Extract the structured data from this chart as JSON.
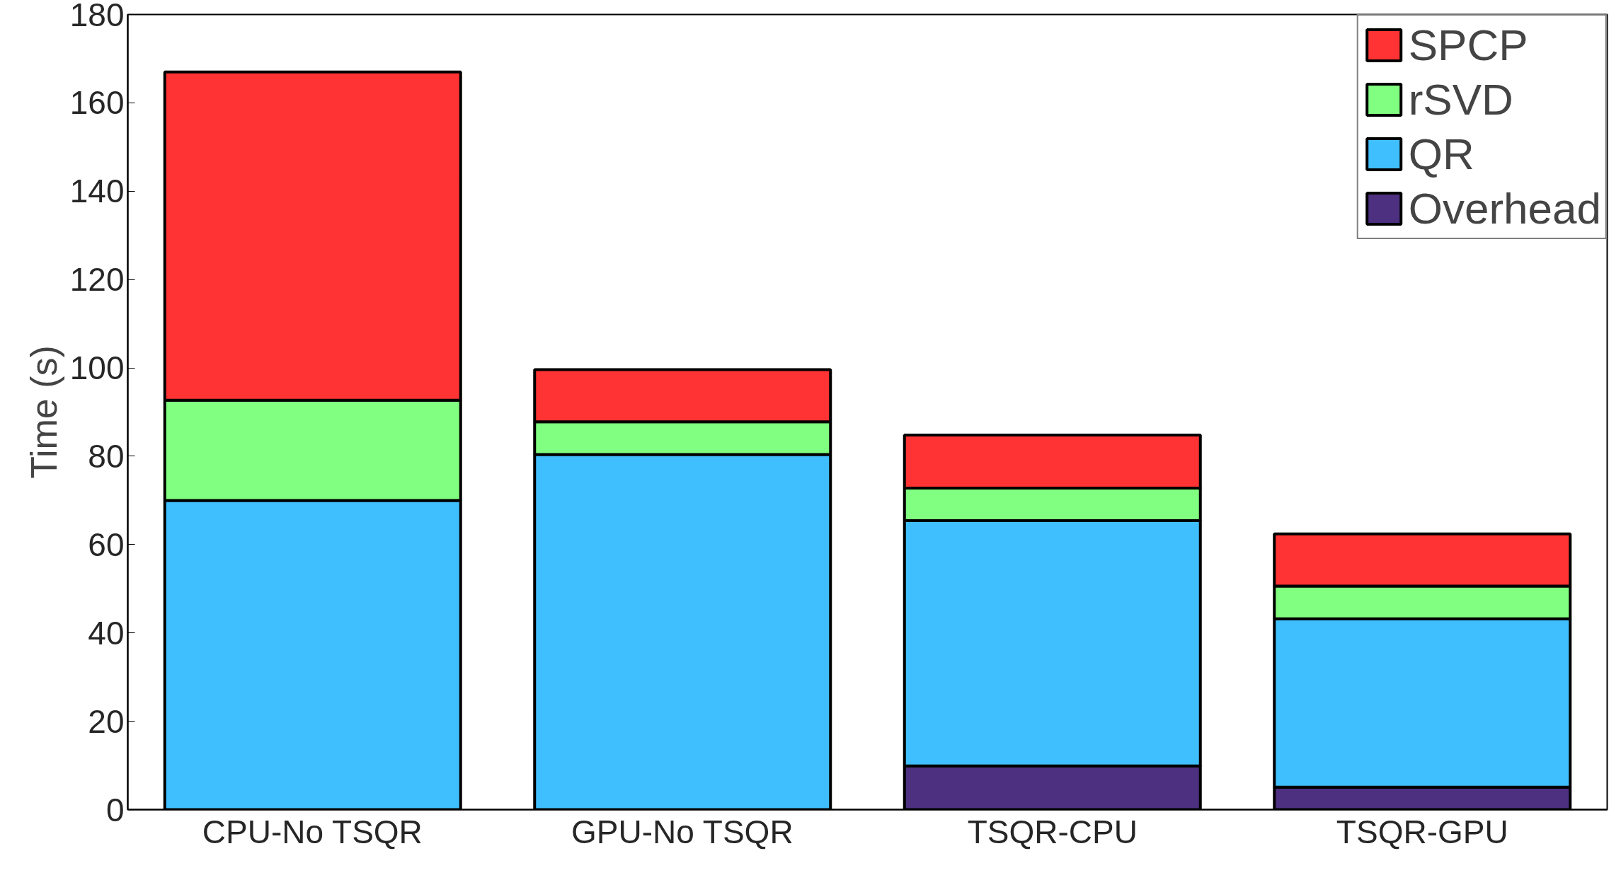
{
  "chart_data": {
    "type": "bar",
    "stacked": true,
    "ylabel": "Time (s)",
    "categories": [
      "CPU-No TSQR",
      "GPU-No TSQR",
      "TSQR-CPU",
      "TSQR-GPU"
    ],
    "series": [
      {
        "name": "Overhead",
        "color": "#4d3080",
        "values": [
          0,
          0,
          9.9,
          5.1
        ]
      },
      {
        "name": "QR",
        "color": "#40bfff",
        "values": [
          70,
          80.4,
          55.5,
          38.1
        ]
      },
      {
        "name": "rSVD",
        "color": "#80ff80",
        "values": [
          22.7,
          7.4,
          7.4,
          7.4
        ]
      },
      {
        "name": "SPCP",
        "color": "#ff3333",
        "values": [
          74.3,
          11.8,
          12.0,
          11.8
        ]
      }
    ],
    "ylim": [
      0,
      180
    ],
    "yticks": [
      0,
      20,
      40,
      60,
      80,
      100,
      120,
      140,
      160,
      180
    ],
    "grid": false,
    "legend": "top right"
  }
}
